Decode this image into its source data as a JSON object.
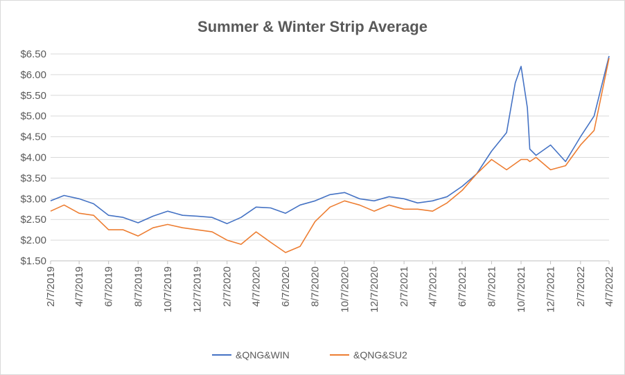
{
  "chart_data": {
    "type": "line",
    "title": "Summer & Winter Strip Average",
    "xlabel": "",
    "ylabel": "",
    "ylim": [
      1.5,
      6.5
    ],
    "yticks": [
      "$1.50",
      "$2.00",
      "$2.50",
      "$3.00",
      "$3.50",
      "$4.00",
      "$4.50",
      "$5.00",
      "$5.50",
      "$6.00",
      "$6.50"
    ],
    "xticks": [
      "2/7/2019",
      "4/7/2019",
      "6/7/2019",
      "8/7/2019",
      "10/7/2019",
      "12/7/2019",
      "2/7/2020",
      "4/7/2020",
      "6/7/2020",
      "8/7/2020",
      "10/7/2020",
      "12/7/2020",
      "2/7/2021",
      "4/7/2021",
      "6/7/2021",
      "8/7/2021",
      "10/7/2021",
      "12/7/2021",
      "2/7/2022",
      "4/7/2022"
    ],
    "x": [
      "2019-02-07",
      "2019-03-07",
      "2019-04-07",
      "2019-05-07",
      "2019-06-07",
      "2019-07-07",
      "2019-08-07",
      "2019-09-07",
      "2019-10-07",
      "2019-11-07",
      "2019-12-07",
      "2020-01-07",
      "2020-02-07",
      "2020-03-07",
      "2020-04-07",
      "2020-05-07",
      "2020-06-07",
      "2020-07-07",
      "2020-08-07",
      "2020-09-07",
      "2020-10-07",
      "2020-11-07",
      "2020-12-07",
      "2021-01-07",
      "2021-02-07",
      "2021-03-07",
      "2021-04-07",
      "2021-05-07",
      "2021-06-07",
      "2021-07-07",
      "2021-08-07",
      "2021-09-07",
      "2021-09-25",
      "2021-10-07",
      "2021-10-20",
      "2021-10-25",
      "2021-11-07",
      "2021-12-07",
      "2022-01-07",
      "2022-02-07",
      "2022-03-07",
      "2022-04-07"
    ],
    "grid": true,
    "legend": "bottom",
    "series": [
      {
        "name": "&QNG&WIN",
        "color": "#4472c4",
        "values": [
          2.95,
          3.08,
          3.0,
          2.88,
          2.6,
          2.55,
          2.42,
          2.58,
          2.7,
          2.6,
          2.58,
          2.55,
          2.4,
          2.55,
          2.8,
          2.78,
          2.65,
          2.85,
          2.95,
          3.1,
          3.15,
          3.0,
          2.95,
          3.05,
          3.0,
          2.9,
          2.95,
          3.05,
          3.3,
          3.6,
          4.15,
          4.6,
          5.8,
          6.2,
          5.2,
          4.2,
          4.05,
          4.3,
          3.9,
          4.5,
          5.0,
          6.45
        ]
      },
      {
        "name": "&QNG&SU2",
        "color": "#ed7d31",
        "values": [
          2.7,
          2.85,
          2.65,
          2.6,
          2.25,
          2.25,
          2.1,
          2.3,
          2.38,
          2.3,
          2.25,
          2.2,
          2.0,
          1.9,
          2.2,
          1.95,
          1.7,
          1.85,
          2.45,
          2.8,
          2.95,
          2.85,
          2.7,
          2.85,
          2.75,
          2.75,
          2.7,
          2.9,
          3.2,
          3.6,
          3.95,
          3.7,
          3.85,
          3.95,
          3.95,
          3.9,
          4.0,
          3.7,
          3.8,
          4.3,
          4.65,
          6.4
        ]
      }
    ]
  }
}
